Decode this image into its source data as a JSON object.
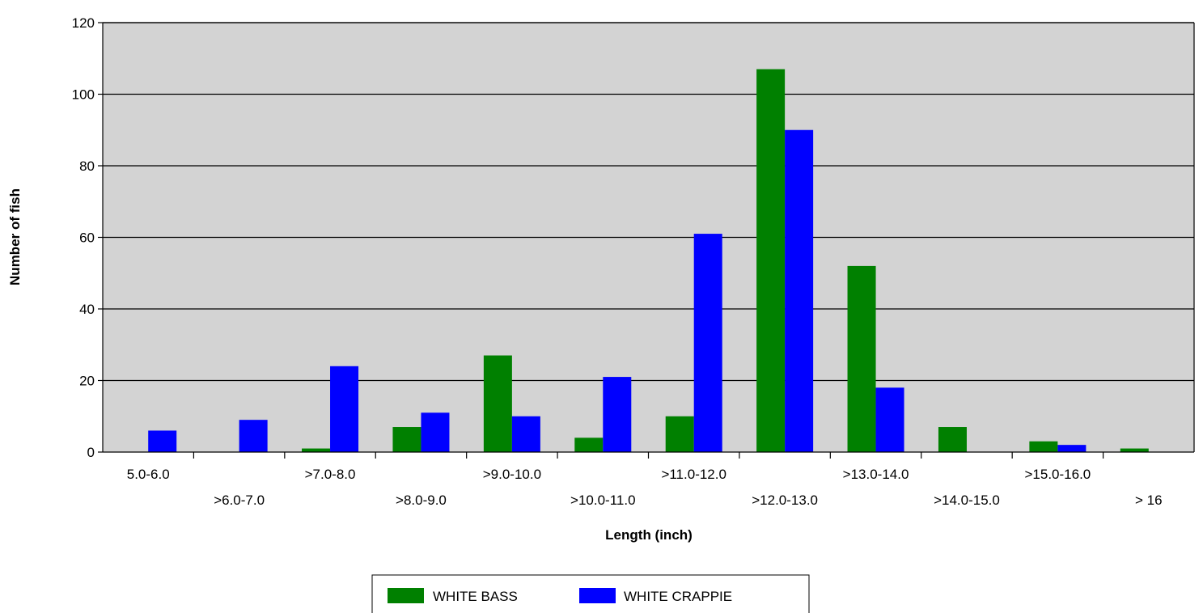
{
  "chart_data": {
    "type": "bar",
    "xlabel": "Length (inch)",
    "ylabel": "Number of fish",
    "ylim": [
      0,
      120
    ],
    "yticks": [
      0,
      20,
      40,
      60,
      80,
      100,
      120
    ],
    "categories": [
      "5.0-6.0",
      ">6.0-7.0",
      ">7.0-8.0",
      ">8.0-9.0",
      ">9.0-10.0",
      ">10.0-11.0",
      ">11.0-12.0",
      ">12.0-13.0",
      ">13.0-14.0",
      ">14.0-15.0",
      ">15.0-16.0",
      "> 16"
    ],
    "series": [
      {
        "name": "WHITE BASS",
        "color": "#008000",
        "values": [
          0,
          0,
          1,
          7,
          27,
          4,
          10,
          107,
          52,
          7,
          3,
          1
        ]
      },
      {
        "name": "WHITE CRAPPIE",
        "color": "#0000ff",
        "values": [
          6,
          9,
          24,
          11,
          10,
          21,
          61,
          90,
          18,
          0,
          2,
          0
        ]
      }
    ],
    "plot_background": "#d3d3d3",
    "grid": true,
    "legend_position": "bottom"
  }
}
